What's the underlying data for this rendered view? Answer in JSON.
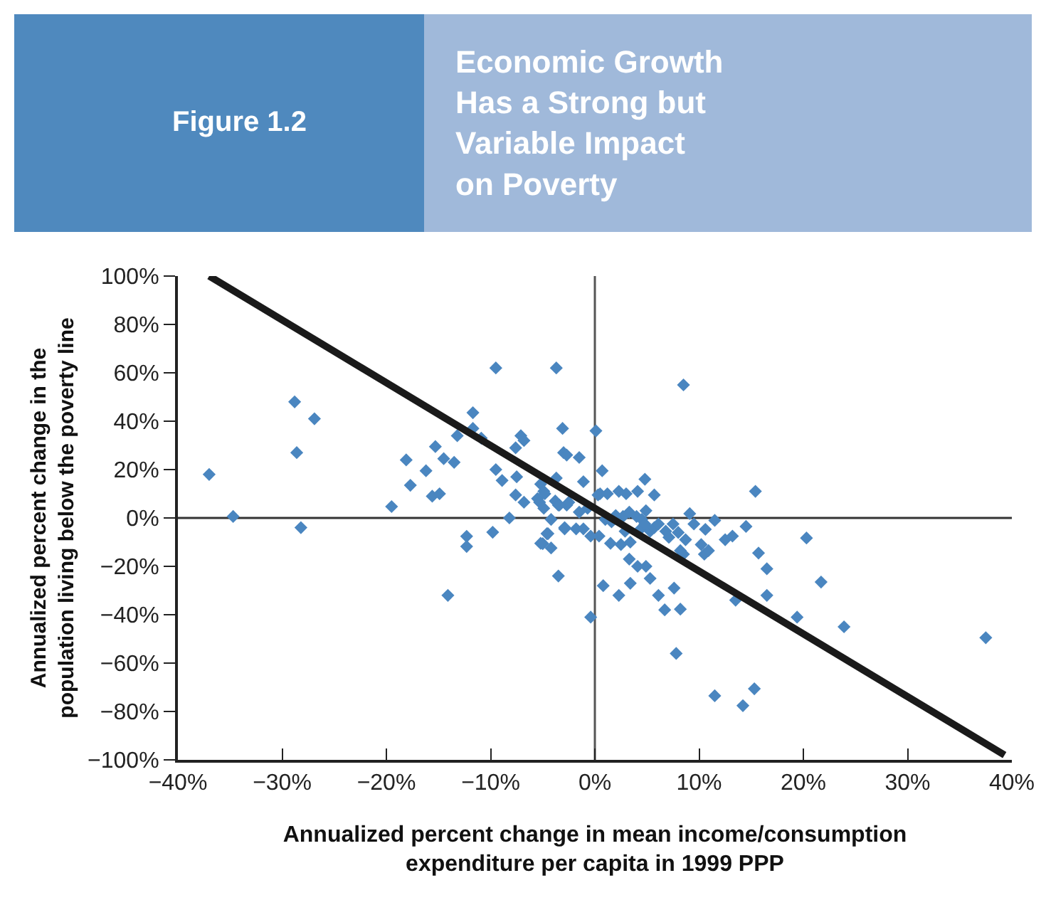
{
  "chart_data": {
    "type": "scatter",
    "title": "Figure 1.2",
    "subtitle": "Economic Growth\nHas a Strong but\nVariable Impact\non Poverty",
    "xlabel": "Annualized percent change in mean income/consumption\nexpenditure per capita in 1999 PPP",
    "ylabel": "Annualized percent change in the\npopulation living below the poverty line",
    "xlim": [
      -40,
      40
    ],
    "xticks": [
      {
        "value": -40,
        "label": "−40%"
      },
      {
        "value": -30,
        "label": "−30%"
      },
      {
        "value": -20,
        "label": "−20%"
      },
      {
        "value": -10,
        "label": "−10%"
      },
      {
        "value": 0,
        "label": "0%"
      },
      {
        "value": 10,
        "label": "10%"
      },
      {
        "value": 20,
        "label": "20%"
      },
      {
        "value": 30,
        "label": "30%"
      },
      {
        "value": 40,
        "label": "40%"
      }
    ],
    "ylim": [
      -100,
      100
    ],
    "yticks": [
      {
        "value": -100,
        "label": "−100%"
      },
      {
        "value": -80,
        "label": "−80%"
      },
      {
        "value": -60,
        "label": "−60%"
      },
      {
        "value": -40,
        "label": "−40%"
      },
      {
        "value": -20,
        "label": "−20%"
      },
      {
        "value": 0,
        "label": "0%"
      },
      {
        "value": 20,
        "label": "20%"
      },
      {
        "value": 40,
        "label": "40%"
      },
      {
        "value": 60,
        "label": "60%"
      },
      {
        "value": 80,
        "label": "80%"
      },
      {
        "value": 100,
        "label": "100%"
      }
    ],
    "grid": false,
    "ref_lines": [
      {
        "axis": "x",
        "value": 0,
        "color": "#555555"
      },
      {
        "axis": "y",
        "value": 0,
        "color": "#333333"
      }
    ],
    "series": [
      {
        "color": "#4a86c0",
        "marker": "diamond",
        "x": [
          -37,
          -34.7,
          -28.8,
          -28.6,
          -28.2,
          -26.9,
          -19.5,
          -18.1,
          -17.7,
          -16.2,
          -15.3,
          -15.6,
          -14.9,
          -14.5,
          -14.1,
          -13.5,
          -13.2,
          -12.3,
          -12.3,
          -11.7,
          -11.7,
          -10.9,
          -9.8,
          -9.5,
          -9.5,
          -8.9,
          -8.2,
          -7.6,
          -7.6,
          -7.5,
          -7.1,
          -6.8,
          -6.8,
          -5.5,
          -5.3,
          -5.2,
          -5.2,
          -5.0,
          -4.9,
          -4.9,
          -4.8,
          -4.6,
          -4.5,
          -4.2,
          -4.2,
          -3.8,
          -3.7,
          -3.7,
          -3.5,
          -3.5,
          -3.4,
          -3.1,
          -3.0,
          -2.9,
          -2.9,
          -2.7,
          -2.7,
          -2.5,
          -1.8,
          -1.5,
          -1.5,
          -1.1,
          -1.1,
          -0.7,
          -0.4,
          -0.4,
          0.1,
          0.3,
          0.4,
          0.5,
          0.7,
          0.8,
          1.0,
          1.2,
          1.5,
          1.6,
          2.0,
          2.3,
          2.3,
          2.5,
          2.7,
          2.9,
          3.0,
          3.3,
          3.3,
          3.4,
          3.4,
          4.0,
          4.1,
          4.1,
          4.4,
          4.5,
          4.8,
          4.8,
          4.9,
          4.9,
          5.3,
          5.3,
          5.7,
          5.7,
          6.1,
          6.1,
          6.7,
          6.8,
          7.1,
          7.5,
          7.6,
          7.8,
          8.0,
          8.2,
          8.2,
          8.5,
          8.5,
          8.7,
          9.1,
          9.5,
          10.2,
          10.5,
          10.6,
          10.9,
          11.5,
          11.5,
          12.5,
          13.2,
          13.5,
          14.2,
          14.5,
          15.3,
          15.4,
          15.7,
          16.5,
          16.5,
          19.4,
          20.3,
          21.7,
          23.9,
          37.5
        ],
        "values": [
          18,
          0.6,
          48,
          27,
          -4,
          41,
          4.7,
          24,
          13.5,
          19.5,
          29.5,
          9,
          10,
          24.5,
          -32,
          23,
          34,
          -7.6,
          -11.8,
          43.5,
          37,
          33,
          -5.9,
          62,
          20,
          15.5,
          0,
          29,
          9.5,
          17,
          34,
          32,
          6.5,
          8,
          6.5,
          14,
          -10.5,
          -10.6,
          11,
          4,
          10,
          -6.5,
          -6.5,
          -12.4,
          -0.6,
          7,
          62,
          16.5,
          -24,
          5.3,
          5.3,
          37,
          27,
          -4.5,
          -4,
          26,
          5.3,
          6.5,
          -4.5,
          25,
          2.4,
          -4.5,
          15,
          4,
          -41,
          -7.5,
          36,
          9.5,
          -7.5,
          10,
          19.5,
          -28,
          -0.6,
          10,
          -10.5,
          -1.6,
          1,
          -32,
          11,
          -11,
          0.6,
          -5.5,
          10,
          2.4,
          -17,
          -27,
          -10,
          0.6,
          11,
          -20,
          -4.5,
          -0.6,
          -2.5,
          16,
          -20,
          3,
          -25,
          -5.5,
          9.5,
          -4,
          -2.5,
          -32,
          -38,
          -5.5,
          -8,
          -2.5,
          -29,
          -56,
          -6,
          -13.5,
          -37.7,
          55,
          -15,
          -9,
          1.8,
          -2.5,
          -11,
          -15,
          -4.7,
          -13.5,
          -1,
          -73.5,
          -9,
          -7.5,
          -34,
          -77.6,
          -3.5,
          -70.6,
          11,
          -14.5,
          -32,
          -21,
          -41,
          -8.3,
          -26.5,
          -45,
          -49.5
        ]
      },
      {
        "type": "line",
        "color": "#1a1a1a",
        "marker": "none",
        "line_style": "solid",
        "x": [
          -37,
          39.3
        ],
        "values": [
          100,
          -98
        ]
      }
    ]
  }
}
